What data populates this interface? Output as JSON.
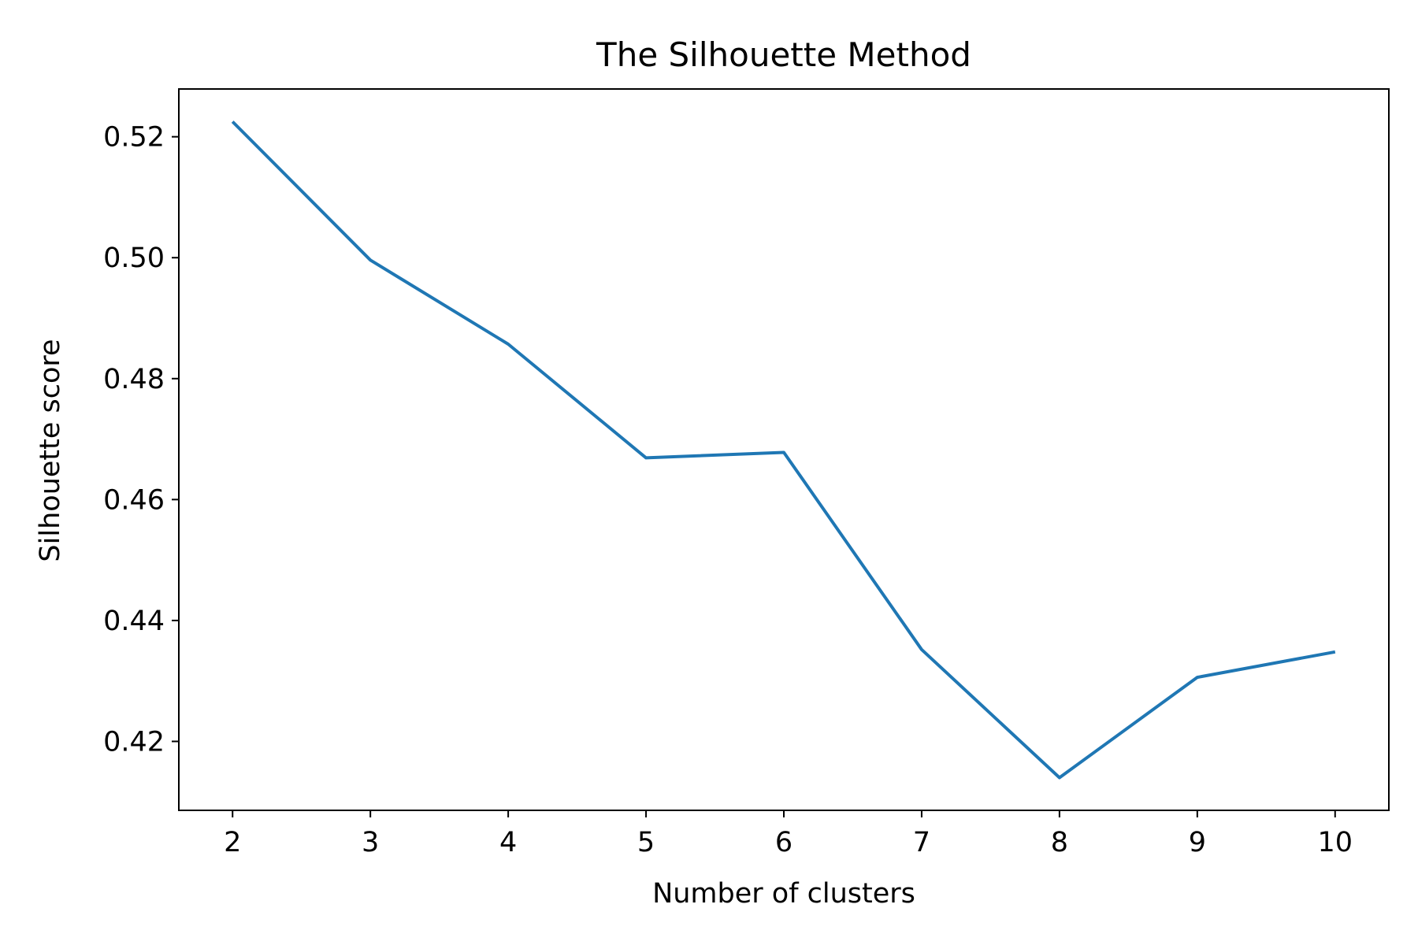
{
  "chart_data": {
    "type": "line",
    "title": "The Silhouette Method",
    "xlabel": "Number of clusters",
    "ylabel": "Silhouette score",
    "x": [
      2,
      3,
      4,
      5,
      6,
      7,
      8,
      9,
      10
    ],
    "series": [
      {
        "values": [
          0.5225,
          0.4996,
          0.4857,
          0.4669,
          0.4678,
          0.4352,
          0.414,
          0.4306,
          0.4348
        ],
        "color": "#1f77b4"
      }
    ],
    "xticks": [
      2,
      3,
      4,
      5,
      6,
      7,
      8,
      9,
      10
    ],
    "xtick_labels": [
      "2",
      "3",
      "4",
      "5",
      "6",
      "7",
      "8",
      "9",
      "10"
    ],
    "yticks": [
      0.42,
      0.44,
      0.46,
      0.48,
      0.5,
      0.52
    ],
    "ytick_labels": [
      "0.42",
      "0.44",
      "0.46",
      "0.48",
      "0.50",
      "0.52"
    ],
    "xlim": [
      1.61,
      10.39
    ],
    "ylim": [
      0.4086,
      0.5279
    ],
    "grid": false,
    "legend": "none"
  }
}
